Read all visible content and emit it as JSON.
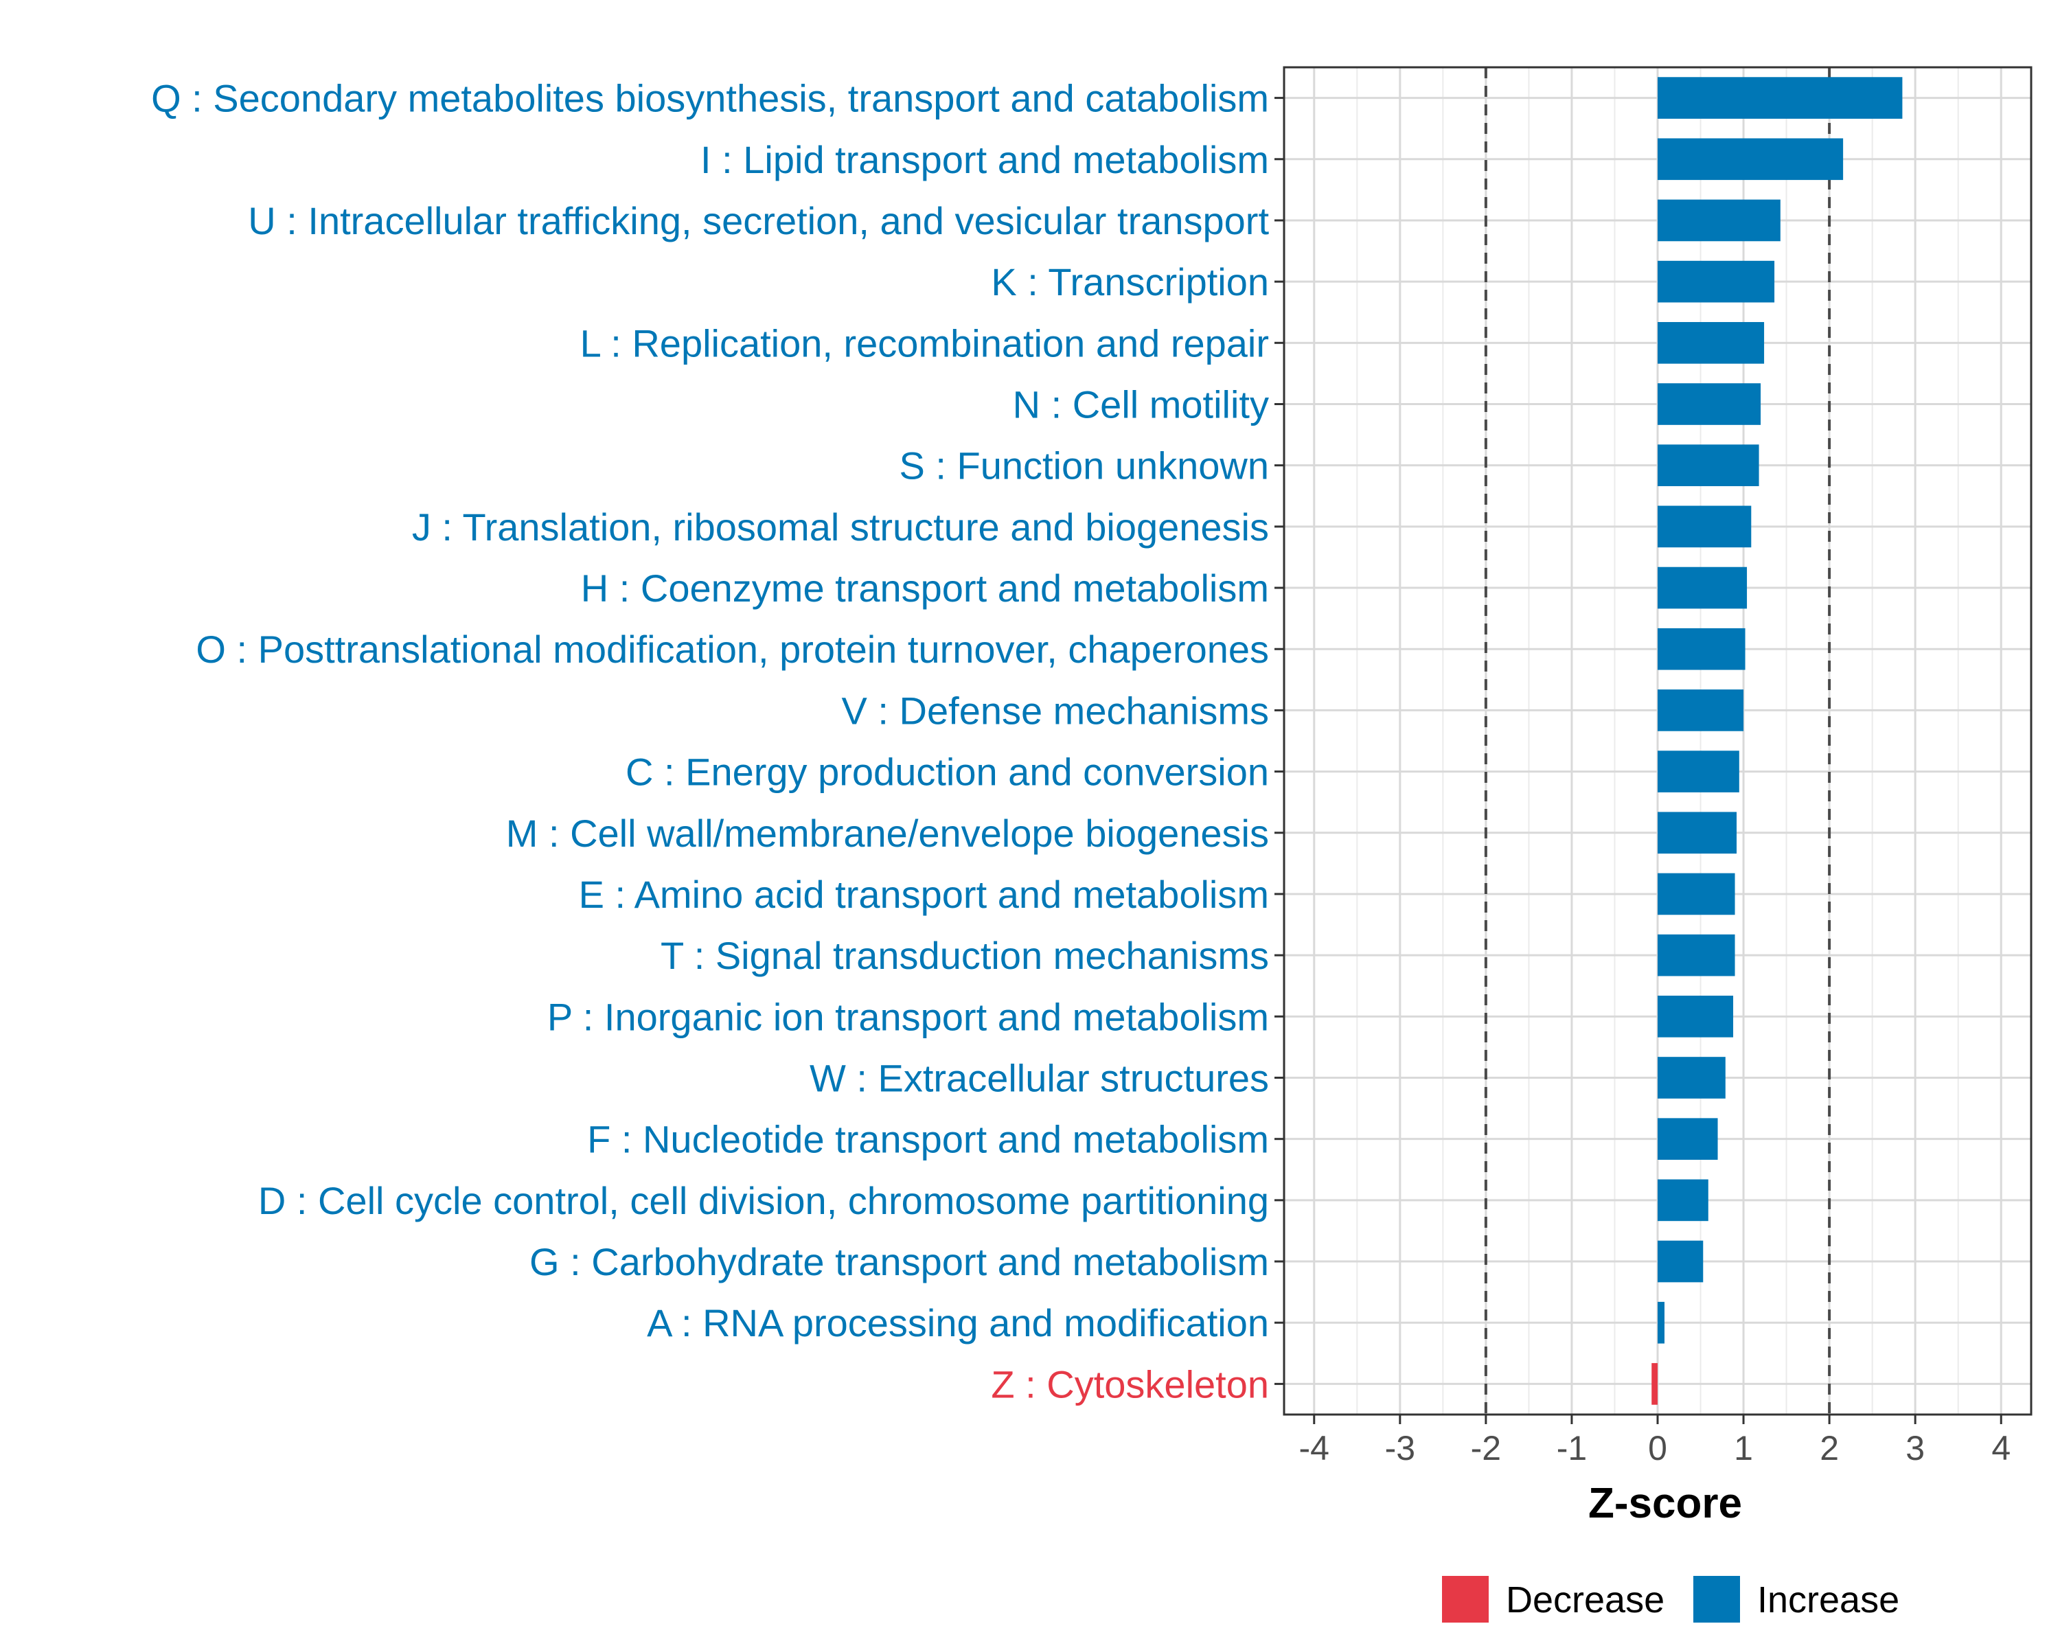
{
  "chart_data": {
    "type": "bar",
    "orientation": "horizontal",
    "title": "",
    "xlabel": "Z-score",
    "ylabel": "",
    "xlim": [
      -4.35,
      4.35
    ],
    "xticks": [
      -4,
      -3,
      -2,
      -1,
      0,
      1,
      2,
      3,
      4
    ],
    "xtick_labels": [
      "-4",
      "-3",
      "-2",
      "-1",
      "0",
      "1",
      "2",
      "3",
      "4"
    ],
    "reference_lines": [
      -2,
      2
    ],
    "grid": true,
    "categories": [
      "Q : Secondary metabolites biosynthesis, transport and catabolism",
      "I : Lipid transport and metabolism",
      "U : Intracellular trafficking, secretion, and vesicular transport",
      "K : Transcription",
      "L : Replication, recombination and repair",
      "N : Cell motility",
      "S : Function unknown",
      "J : Translation, ribosomal structure and biogenesis",
      "H : Coenzyme transport and metabolism",
      "O : Posttranslational modification, protein turnover, chaperones",
      "V : Defense mechanisms",
      "C : Energy production and conversion",
      "M : Cell wall/membrane/envelope biogenesis",
      "E : Amino acid transport and metabolism",
      "T : Signal transduction mechanisms",
      "P : Inorganic ion transport and metabolism",
      "W : Extracellular structures",
      "F : Nucleotide transport and metabolism",
      "D : Cell cycle control, cell division, chromosome partitioning",
      "G : Carbohydrate transport and metabolism",
      "A : RNA processing and modification",
      "Z : Cytoskeleton"
    ],
    "values": [
      2.85,
      2.16,
      1.43,
      1.36,
      1.24,
      1.2,
      1.18,
      1.09,
      1.04,
      1.02,
      1.0,
      0.95,
      0.92,
      0.9,
      0.9,
      0.88,
      0.79,
      0.7,
      0.59,
      0.53,
      0.08,
      -0.07
    ],
    "direction": [
      "Increase",
      "Increase",
      "Increase",
      "Increase",
      "Increase",
      "Increase",
      "Increase",
      "Increase",
      "Increase",
      "Increase",
      "Increase",
      "Increase",
      "Increase",
      "Increase",
      "Increase",
      "Increase",
      "Increase",
      "Increase",
      "Increase",
      "Increase",
      "Increase",
      "Decrease"
    ],
    "legend": {
      "position": "bottom",
      "entries": [
        {
          "label": "Decrease",
          "color": "#e63946"
        },
        {
          "label": "Increase",
          "color": "#0077b6"
        }
      ]
    },
    "colors": {
      "Increase": "#0077b6",
      "Decrease": "#e63946"
    }
  }
}
